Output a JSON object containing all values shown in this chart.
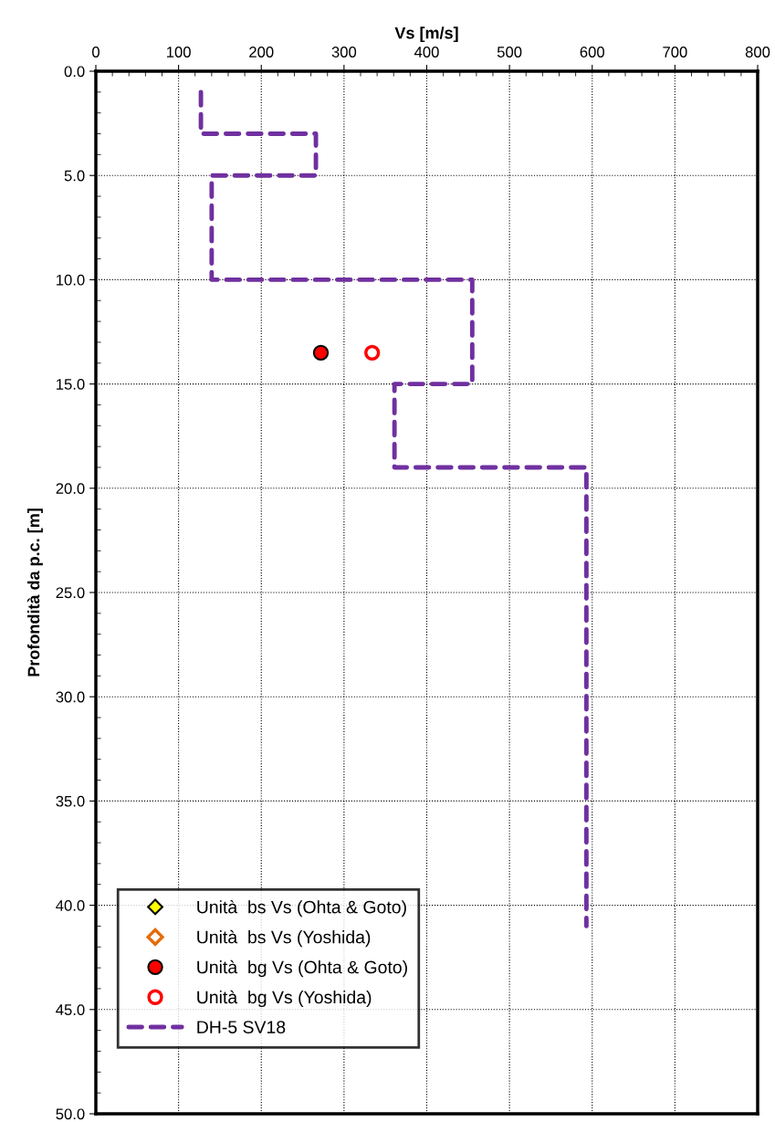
{
  "chart_data": {
    "type": "scatter",
    "xlabel": "Vs [m/s]",
    "ylabel": "Profondità da p.c. [m]",
    "xlim": [
      0,
      800
    ],
    "xticks": [
      0,
      100,
      200,
      300,
      400,
      500,
      600,
      700,
      800
    ],
    "ylim": [
      50,
      0
    ],
    "yticks": [
      {
        "value": 0,
        "label": "0.0"
      },
      {
        "value": 5,
        "label": "5.0"
      },
      {
        "value": 10,
        "label": "10.0"
      },
      {
        "value": 15,
        "label": "15.0"
      },
      {
        "value": 20,
        "label": "20.0"
      },
      {
        "value": 25,
        "label": "25.0"
      },
      {
        "value": 30,
        "label": "30.0"
      },
      {
        "value": 35,
        "label": "35.0"
      },
      {
        "value": 40,
        "label": "40.0"
      },
      {
        "value": 45,
        "label": "45.0"
      },
      {
        "value": 50,
        "label": "50.0"
      }
    ],
    "grid": true,
    "legend": "bottom left",
    "series": [
      {
        "name": "Unità  bs Vs (Ohta & Goto)",
        "marker": "diamond",
        "color": "#ffff00"
      },
      {
        "name": "Unità  bs Vs (Yoshida)",
        "marker": "diamond",
        "color": "#e46c0a"
      },
      {
        "name": "Unità  bg Vs (Ohta & Goto)",
        "marker": "circle",
        "color": "#ff0000",
        "x": [
          272
        ],
        "values": [
          13.5
        ]
      },
      {
        "name": "Unità  bg Vs (Yoshida)",
        "marker": "circle",
        "color": "#ff0000",
        "x": [
          334
        ],
        "values": [
          13.5
        ]
      },
      {
        "name": "DH-5 SV18",
        "type": "line",
        "line_style": "dashed",
        "marker": "none",
        "color": "#7030a0",
        "x": [
          127,
          127,
          266,
          266,
          140,
          140,
          455,
          455,
          361,
          361,
          593,
          593
        ],
        "values": [
          1.0,
          3.0,
          3.0,
          5.0,
          5.0,
          10.0,
          10.0,
          15.0,
          15.0,
          19.0,
          19.0,
          41.0
        ]
      }
    ]
  }
}
